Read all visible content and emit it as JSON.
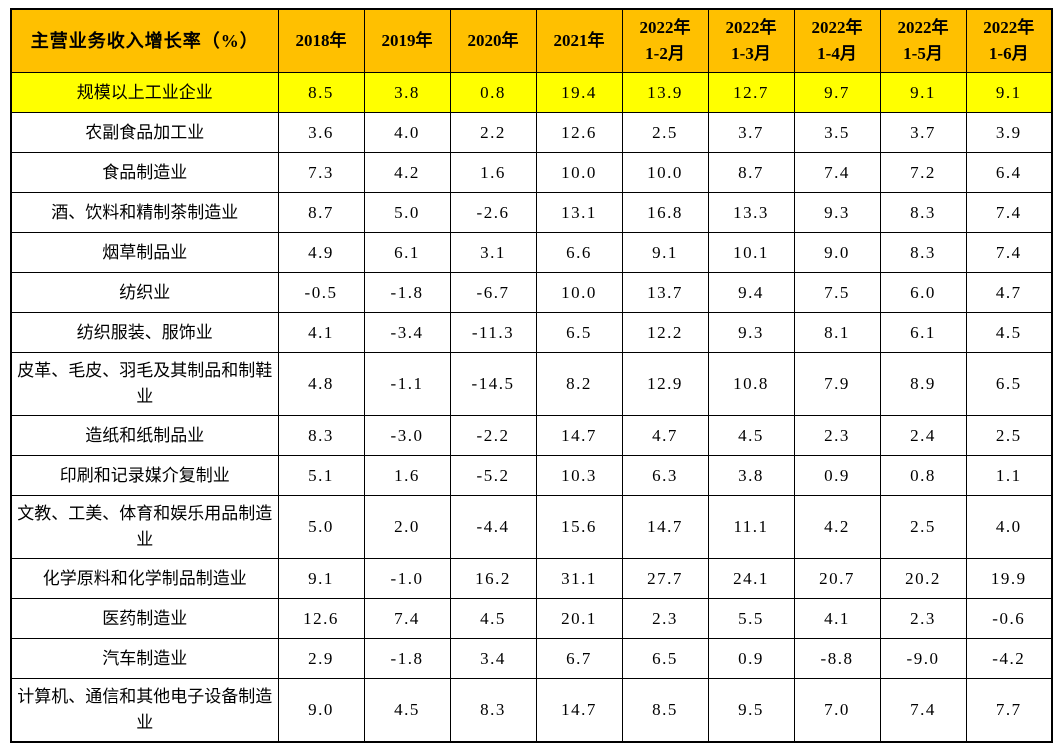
{
  "chart_data": {
    "type": "table",
    "title": "主营业务收入增长率（%）",
    "columns": [
      "2018年",
      "2019年",
      "2020年",
      "2021年",
      "2022年\n1-2月",
      "2022年\n1-3月",
      "2022年\n1-4月",
      "2022年\n1-5月",
      "2022年\n1-6月"
    ],
    "rows": [
      {
        "label": "规模以上工业企业",
        "highlight": true,
        "values": [
          "8.5",
          "3.8",
          "0.8",
          "19.4",
          "13.9",
          "12.7",
          "9.7",
          "9.1",
          "9.1"
        ]
      },
      {
        "label": "农副食品加工业",
        "highlight": false,
        "values": [
          "3.6",
          "4.0",
          "2.2",
          "12.6",
          "2.5",
          "3.7",
          "3.5",
          "3.7",
          "3.9"
        ]
      },
      {
        "label": "食品制造业",
        "highlight": false,
        "values": [
          "7.3",
          "4.2",
          "1.6",
          "10.0",
          "10.0",
          "8.7",
          "7.4",
          "7.2",
          "6.4"
        ]
      },
      {
        "label": "酒、饮料和精制茶制造业",
        "highlight": false,
        "values": [
          "8.7",
          "5.0",
          "-2.6",
          "13.1",
          "16.8",
          "13.3",
          "9.3",
          "8.3",
          "7.4"
        ]
      },
      {
        "label": "烟草制品业",
        "highlight": false,
        "values": [
          "4.9",
          "6.1",
          "3.1",
          "6.6",
          "9.1",
          "10.1",
          "9.0",
          "8.3",
          "7.4"
        ]
      },
      {
        "label": "纺织业",
        "highlight": false,
        "values": [
          "-0.5",
          "-1.8",
          "-6.7",
          "10.0",
          "13.7",
          "9.4",
          "7.5",
          "6.0",
          "4.7"
        ]
      },
      {
        "label": "纺织服装、服饰业",
        "highlight": false,
        "values": [
          "4.1",
          "-3.4",
          "-11.3",
          "6.5",
          "12.2",
          "9.3",
          "8.1",
          "6.1",
          "4.5"
        ]
      },
      {
        "label": "皮革、毛皮、羽毛及其制品和制鞋业",
        "highlight": false,
        "values": [
          "4.8",
          "-1.1",
          "-14.5",
          "8.2",
          "12.9",
          "10.8",
          "7.9",
          "8.9",
          "6.5"
        ]
      },
      {
        "label": "造纸和纸制品业",
        "highlight": false,
        "values": [
          "8.3",
          "-3.0",
          "-2.2",
          "14.7",
          "4.7",
          "4.5",
          "2.3",
          "2.4",
          "2.5"
        ]
      },
      {
        "label": "印刷和记录媒介复制业",
        "highlight": false,
        "values": [
          "5.1",
          "1.6",
          "-5.2",
          "10.3",
          "6.3",
          "3.8",
          "0.9",
          "0.8",
          "1.1"
        ]
      },
      {
        "label": "文教、工美、体育和娱乐用品制造业",
        "highlight": false,
        "values": [
          "5.0",
          "2.0",
          "-4.4",
          "15.6",
          "14.7",
          "11.1",
          "4.2",
          "2.5",
          "4.0"
        ]
      },
      {
        "label": "化学原料和化学制品制造业",
        "highlight": false,
        "values": [
          "9.1",
          "-1.0",
          "16.2",
          "31.1",
          "27.7",
          "24.1",
          "20.7",
          "20.2",
          "19.9"
        ]
      },
      {
        "label": "医药制造业",
        "highlight": false,
        "values": [
          "12.6",
          "7.4",
          "4.5",
          "20.1",
          "2.3",
          "5.5",
          "4.1",
          "2.3",
          "-0.6"
        ]
      },
      {
        "label": "汽车制造业",
        "highlight": false,
        "values": [
          "2.9",
          "-1.8",
          "3.4",
          "6.7",
          "6.5",
          "0.9",
          "-8.8",
          "-9.0",
          "-4.2"
        ]
      },
      {
        "label": "计算机、通信和其他电子设备制造业",
        "highlight": false,
        "values": [
          "9.0",
          "4.5",
          "8.3",
          "14.7",
          "8.5",
          "9.5",
          "7.0",
          "7.4",
          "7.7"
        ]
      }
    ]
  },
  "colors": {
    "header_bg": "#FFC000",
    "highlight_bg": "#FFFF00",
    "border": "#000000",
    "text": "#000000"
  }
}
